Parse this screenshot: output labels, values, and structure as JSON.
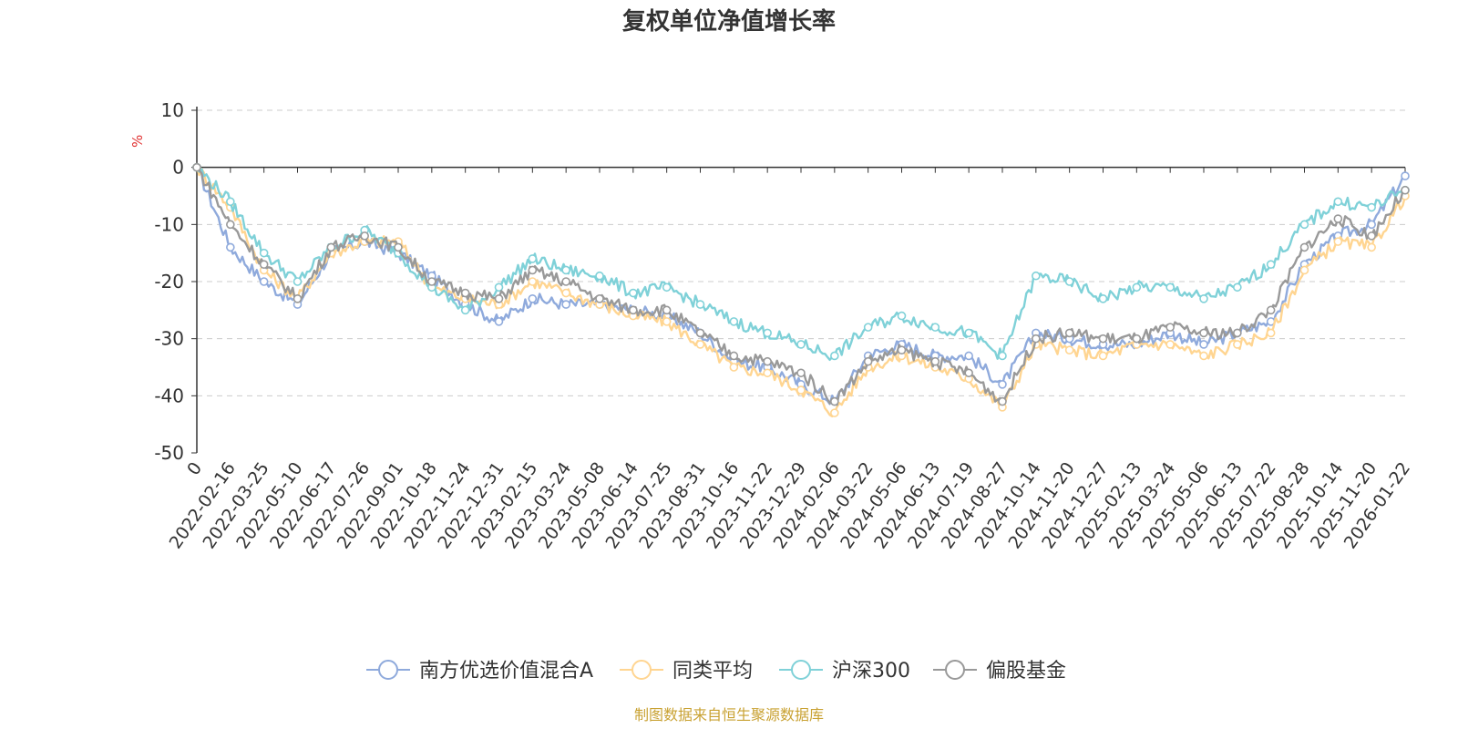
{
  "chart_data": {
    "type": "line",
    "title": "复权单位净值增长率",
    "ylabel": "%",
    "ylim": [
      -50,
      10
    ],
    "yticks": [
      10,
      0,
      -10,
      -20,
      -30,
      -40,
      -50
    ],
    "grid": true,
    "legend_position": "bottom-center",
    "x": [
      "0",
      "2022-02-16",
      "2022-03-25",
      "2022-05-10",
      "2022-06-17",
      "2022-07-26",
      "2022-09-01",
      "2022-10-18",
      "2022-11-24",
      "2022-12-31",
      "2023-02-15",
      "2023-03-24",
      "2023-05-08",
      "2023-06-14",
      "2023-07-25",
      "2023-08-31",
      "2023-10-16",
      "2023-11-22",
      "2023-12-29",
      "2024-02-06",
      "2024-03-22",
      "2024-05-06",
      "2024-06-13",
      "2024-07-19",
      "2024-08-27",
      "2024-10-14",
      "2024-11-20",
      "2024-12-27",
      "2025-02-13",
      "2025-03-24",
      "2025-05-06",
      "2025-06-13",
      "2025-07-22",
      "2025-08-28",
      "2025-10-14",
      "2025-11-20",
      "2026-01-22"
    ],
    "series": [
      {
        "name": "南方优选价值混合A",
        "color": "#8faadc",
        "values": [
          0,
          -14,
          -20,
          -24,
          -15,
          -13,
          -15,
          -19,
          -24,
          -27,
          -23,
          -24,
          -24,
          -25,
          -26,
          -29,
          -34,
          -35,
          -38,
          -41,
          -33,
          -31,
          -33,
          -33,
          -38,
          -29,
          -30,
          -31,
          -31,
          -29,
          -31,
          -29,
          -27,
          -17,
          -12,
          -10,
          -1.5
        ]
      },
      {
        "name": "同类平均",
        "color": "#ffd591",
        "values": [
          0,
          -7,
          -18,
          -23,
          -15,
          -13,
          -13,
          -21,
          -23,
          -24,
          -20,
          -22,
          -24,
          -26,
          -27,
          -31,
          -35,
          -36,
          -39,
          -43,
          -35,
          -33,
          -35,
          -37,
          -42,
          -31,
          -32,
          -33,
          -31,
          -31,
          -33,
          -31,
          -29,
          -18,
          -13,
          -14,
          -5
        ]
      },
      {
        "name": "沪深300",
        "color": "#7fd1d8",
        "values": [
          0,
          -6,
          -15,
          -20,
          -14,
          -11,
          -15,
          -21,
          -25,
          -21,
          -16,
          -18,
          -19,
          -22,
          -21,
          -24,
          -27,
          -29,
          -31,
          -33,
          -28,
          -26,
          -28,
          -29,
          -33,
          -19,
          -20,
          -23,
          -21,
          -21,
          -23,
          -21,
          -17,
          -10,
          -6,
          -7,
          -4
        ]
      },
      {
        "name": "偏股基金",
        "color": "#999999",
        "values": [
          0,
          -10,
          -17,
          -23,
          -14,
          -12,
          -14,
          -20,
          -22,
          -23,
          -18,
          -20,
          -23,
          -25,
          -25,
          -29,
          -33,
          -34,
          -36,
          -41,
          -34,
          -32,
          -34,
          -36,
          -41,
          -30,
          -29,
          -30,
          -30,
          -28,
          -29,
          -29,
          -25,
          -14,
          -9,
          -12,
          -4
        ]
      }
    ]
  },
  "footer": {
    "source_text": "制图数据来自恒生聚源数据库",
    "source_color": "#c9a233"
  }
}
